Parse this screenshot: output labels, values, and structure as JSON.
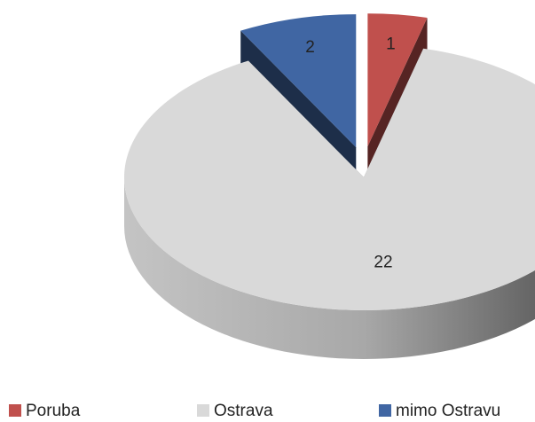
{
  "chart_data": {
    "type": "pie",
    "categories": [
      "Poruba",
      "Ostrava",
      "mimo Ostravu"
    ],
    "values": [
      1,
      22,
      2
    ],
    "colors": [
      "#c0504d",
      "#d9d9d9",
      "#4066a3"
    ],
    "legend": "bottom"
  }
}
